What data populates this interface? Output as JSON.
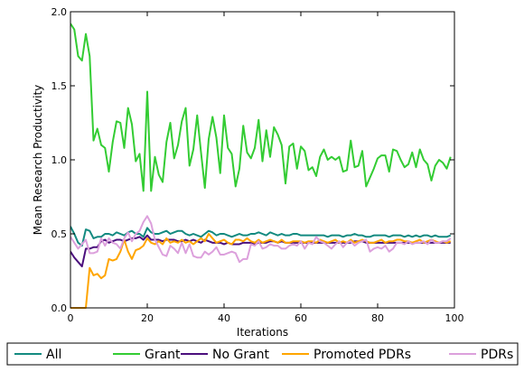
{
  "chart_data": {
    "type": "line",
    "xlabel": "Iterations",
    "ylabel": "Mean Research Productivity",
    "xlim": [
      0,
      100
    ],
    "ylim": [
      0.0,
      2.0
    ],
    "xticks": [
      0,
      20,
      40,
      60,
      80,
      100
    ],
    "yticks": [
      0.0,
      0.5,
      1.0,
      1.5,
      2.0
    ],
    "x_tick_labels": [
      "0",
      "20",
      "40",
      "60",
      "80",
      "100"
    ],
    "y_tick_labels": [
      "0.0",
      "0.5",
      "1.0",
      "1.5",
      "2.0"
    ],
    "grid": false,
    "legend_placement": "bottom",
    "series": [
      {
        "name": "All",
        "color": "#138a80",
        "x": [
          0,
          1,
          2,
          3,
          4,
          5,
          6,
          7,
          8,
          9,
          10,
          11,
          12,
          13,
          14,
          15,
          16,
          17,
          18,
          19,
          20,
          21,
          22,
          23,
          24,
          25,
          26,
          27,
          28,
          29,
          30,
          31,
          32,
          33,
          34,
          35,
          36,
          37,
          38,
          39,
          40,
          41,
          42,
          43,
          44,
          45,
          46,
          47,
          48,
          49,
          50,
          51,
          52,
          53,
          54,
          55,
          56,
          57,
          58,
          59,
          60,
          61,
          62,
          63,
          64,
          65,
          66,
          67,
          68,
          69,
          70,
          71,
          72,
          73,
          74,
          75,
          76,
          77,
          78,
          79,
          80,
          81,
          82,
          83,
          84,
          85,
          86,
          87,
          88,
          89,
          90,
          91,
          92,
          93,
          94,
          95,
          96,
          97,
          98,
          99
        ],
        "values": [
          0.55,
          0.5,
          0.44,
          0.42,
          0.53,
          0.52,
          0.47,
          0.48,
          0.48,
          0.5,
          0.5,
          0.49,
          0.51,
          0.5,
          0.49,
          0.51,
          0.52,
          0.5,
          0.5,
          0.48,
          0.54,
          0.51,
          0.5,
          0.5,
          0.51,
          0.52,
          0.5,
          0.51,
          0.52,
          0.52,
          0.5,
          0.49,
          0.5,
          0.49,
          0.48,
          0.5,
          0.52,
          0.51,
          0.49,
          0.5,
          0.5,
          0.49,
          0.48,
          0.49,
          0.5,
          0.49,
          0.49,
          0.5,
          0.5,
          0.51,
          0.5,
          0.49,
          0.51,
          0.5,
          0.49,
          0.5,
          0.49,
          0.49,
          0.5,
          0.5,
          0.49,
          0.49,
          0.49,
          0.49,
          0.49,
          0.49,
          0.49,
          0.48,
          0.49,
          0.49,
          0.49,
          0.48,
          0.49,
          0.49,
          0.5,
          0.49,
          0.49,
          0.48,
          0.48,
          0.49,
          0.49,
          0.49,
          0.49,
          0.48,
          0.49,
          0.49,
          0.49,
          0.48,
          0.49,
          0.48,
          0.49,
          0.48,
          0.49,
          0.49,
          0.48,
          0.49,
          0.48,
          0.48,
          0.48,
          0.49
        ]
      },
      {
        "name": "Grant",
        "color": "#33cc33",
        "x": [
          0,
          1,
          2,
          3,
          4,
          5,
          6,
          7,
          8,
          9,
          10,
          11,
          12,
          13,
          14,
          15,
          16,
          17,
          18,
          19,
          20,
          21,
          22,
          23,
          24,
          25,
          26,
          27,
          28,
          29,
          30,
          31,
          32,
          33,
          34,
          35,
          36,
          37,
          38,
          39,
          40,
          41,
          42,
          43,
          44,
          45,
          46,
          47,
          48,
          49,
          50,
          51,
          52,
          53,
          54,
          55,
          56,
          57,
          58,
          59,
          60,
          61,
          62,
          63,
          64,
          65,
          66,
          67,
          68,
          69,
          70,
          71,
          72,
          73,
          74,
          75,
          76,
          77,
          78,
          79,
          80,
          81,
          82,
          83,
          84,
          85,
          86,
          87,
          88,
          89,
          90,
          91,
          92,
          93,
          94,
          95,
          96,
          97,
          98,
          99
        ],
        "values": [
          1.92,
          1.88,
          1.7,
          1.67,
          1.85,
          1.7,
          1.13,
          1.21,
          1.1,
          1.08,
          0.92,
          1.12,
          1.26,
          1.25,
          1.08,
          1.35,
          1.24,
          0.99,
          1.04,
          0.79,
          1.46,
          0.79,
          1.02,
          0.9,
          0.85,
          1.12,
          1.25,
          1.01,
          1.1,
          1.26,
          1.35,
          0.96,
          1.07,
          1.3,
          1.05,
          0.81,
          1.14,
          1.29,
          1.15,
          0.91,
          1.3,
          1.08,
          1.04,
          0.82,
          0.94,
          1.23,
          1.05,
          1.01,
          1.08,
          1.27,
          0.99,
          1.2,
          1.02,
          1.22,
          1.17,
          1.1,
          0.84,
          1.09,
          1.11,
          0.94,
          1.09,
          1.06,
          0.93,
          0.95,
          0.89,
          1.02,
          1.07,
          1.0,
          1.02,
          1.0,
          1.02,
          0.92,
          0.93,
          1.13,
          0.95,
          0.96,
          1.06,
          0.82,
          0.88,
          0.94,
          1.01,
          1.03,
          1.03,
          0.92,
          1.07,
          1.06,
          1.0,
          0.95,
          0.97,
          1.05,
          0.95,
          1.07,
          1.0,
          0.97,
          0.86,
          0.96,
          1.0,
          0.98,
          0.94,
          1.02
        ]
      },
      {
        "name": "No Grant",
        "color": "#4b0f7d",
        "x": [
          0,
          1,
          2,
          3,
          4,
          5,
          6,
          7,
          8,
          9,
          10,
          11,
          12,
          13,
          14,
          15,
          16,
          17,
          18,
          19,
          20,
          21,
          22,
          23,
          24,
          25,
          26,
          27,
          28,
          29,
          30,
          31,
          32,
          33,
          34,
          35,
          36,
          37,
          38,
          39,
          40,
          41,
          42,
          43,
          44,
          45,
          46,
          47,
          48,
          49,
          50,
          51,
          52,
          53,
          54,
          55,
          56,
          57,
          58,
          59,
          60,
          61,
          62,
          63,
          64,
          65,
          66,
          67,
          68,
          69,
          70,
          71,
          72,
          73,
          74,
          75,
          76,
          77,
          78,
          79,
          80,
          81,
          82,
          83,
          84,
          85,
          86,
          87,
          88,
          89,
          90,
          91,
          92,
          93,
          94,
          95,
          96,
          97,
          98,
          99
        ],
        "values": [
          0.38,
          0.34,
          0.31,
          0.28,
          0.4,
          0.4,
          0.41,
          0.41,
          0.45,
          0.46,
          0.44,
          0.45,
          0.46,
          0.46,
          0.45,
          0.46,
          0.47,
          0.47,
          0.48,
          0.46,
          0.49,
          0.46,
          0.46,
          0.46,
          0.45,
          0.46,
          0.46,
          0.46,
          0.45,
          0.45,
          0.46,
          0.45,
          0.46,
          0.45,
          0.44,
          0.46,
          0.45,
          0.44,
          0.44,
          0.44,
          0.43,
          0.44,
          0.43,
          0.43,
          0.43,
          0.44,
          0.44,
          0.44,
          0.43,
          0.44,
          0.44,
          0.44,
          0.45,
          0.45,
          0.44,
          0.45,
          0.44,
          0.44,
          0.44,
          0.44,
          0.44,
          0.44,
          0.44,
          0.44,
          0.44,
          0.44,
          0.44,
          0.44,
          0.44,
          0.44,
          0.44,
          0.44,
          0.44,
          0.44,
          0.45,
          0.45,
          0.45,
          0.44,
          0.44,
          0.44,
          0.44,
          0.44,
          0.44,
          0.44,
          0.44,
          0.44,
          0.44,
          0.44,
          0.44,
          0.44,
          0.44,
          0.44,
          0.44,
          0.44,
          0.44,
          0.44,
          0.44,
          0.44,
          0.44,
          0.44
        ]
      },
      {
        "name": "Promoted PDRs",
        "color": "#ffa500",
        "x": [
          0,
          1,
          2,
          3,
          4,
          5,
          6,
          7,
          8,
          9,
          10,
          11,
          12,
          13,
          14,
          15,
          16,
          17,
          18,
          19,
          20,
          21,
          22,
          23,
          24,
          25,
          26,
          27,
          28,
          29,
          30,
          31,
          32,
          33,
          34,
          35,
          36,
          37,
          38,
          39,
          40,
          41,
          42,
          43,
          44,
          45,
          46,
          47,
          48,
          49,
          50,
          51,
          52,
          53,
          54,
          55,
          56,
          57,
          58,
          59,
          60,
          61,
          62,
          63,
          64,
          65,
          66,
          67,
          68,
          69,
          70,
          71,
          72,
          73,
          74,
          75,
          76,
          77,
          78,
          79,
          80,
          81,
          82,
          83,
          84,
          85,
          86,
          87,
          88,
          89,
          90,
          91,
          92,
          93,
          94,
          95,
          96,
          97,
          98,
          99
        ],
        "values": [
          0.0,
          0.0,
          0.0,
          0.0,
          0.0,
          0.27,
          0.22,
          0.23,
          0.2,
          0.22,
          0.33,
          0.32,
          0.33,
          0.38,
          0.46,
          0.38,
          0.33,
          0.39,
          0.4,
          0.42,
          0.47,
          0.44,
          0.43,
          0.45,
          0.43,
          0.47,
          0.44,
          0.45,
          0.44,
          0.46,
          0.44,
          0.45,
          0.43,
          0.45,
          0.47,
          0.45,
          0.5,
          0.47,
          0.44,
          0.45,
          0.46,
          0.44,
          0.43,
          0.46,
          0.46,
          0.45,
          0.47,
          0.45,
          0.44,
          0.46,
          0.44,
          0.45,
          0.46,
          0.45,
          0.44,
          0.46,
          0.44,
          0.44,
          0.45,
          0.45,
          0.45,
          0.44,
          0.45,
          0.45,
          0.44,
          0.46,
          0.45,
          0.44,
          0.45,
          0.46,
          0.44,
          0.45,
          0.44,
          0.46,
          0.44,
          0.45,
          0.46,
          0.45,
          0.44,
          0.44,
          0.45,
          0.46,
          0.44,
          0.45,
          0.45,
          0.46,
          0.46,
          0.45,
          0.45,
          0.44,
          0.45,
          0.46,
          0.44,
          0.45,
          0.46,
          0.45,
          0.44,
          0.45,
          0.44,
          0.45
        ]
      },
      {
        "name": "PDRs",
        "color": "#dca0dc",
        "x": [
          0,
          1,
          2,
          3,
          4,
          5,
          6,
          7,
          8,
          9,
          10,
          11,
          12,
          13,
          14,
          15,
          16,
          17,
          18,
          19,
          20,
          21,
          22,
          23,
          24,
          25,
          26,
          27,
          28,
          29,
          30,
          31,
          32,
          33,
          34,
          35,
          36,
          37,
          38,
          39,
          40,
          41,
          42,
          43,
          44,
          45,
          46,
          47,
          48,
          49,
          50,
          51,
          52,
          53,
          54,
          55,
          56,
          57,
          58,
          59,
          60,
          61,
          62,
          63,
          64,
          65,
          66,
          67,
          68,
          69,
          70,
          71,
          72,
          73,
          74,
          75,
          76,
          77,
          78,
          79,
          80,
          81,
          82,
          83,
          84,
          85,
          86,
          87,
          88,
          89,
          90,
          91,
          92,
          93,
          94,
          95,
          96,
          97,
          98,
          99
        ],
        "values": [
          0.48,
          0.44,
          0.4,
          0.43,
          0.46,
          0.37,
          0.37,
          0.38,
          0.47,
          0.42,
          0.47,
          0.44,
          0.43,
          0.4,
          0.47,
          0.51,
          0.45,
          0.5,
          0.52,
          0.58,
          0.62,
          0.57,
          0.46,
          0.41,
          0.36,
          0.35,
          0.42,
          0.4,
          0.37,
          0.44,
          0.37,
          0.43,
          0.35,
          0.34,
          0.34,
          0.38,
          0.36,
          0.38,
          0.41,
          0.36,
          0.36,
          0.37,
          0.38,
          0.37,
          0.31,
          0.33,
          0.33,
          0.43,
          0.42,
          0.45,
          0.4,
          0.41,
          0.43,
          0.42,
          0.42,
          0.4,
          0.4,
          0.42,
          0.43,
          0.42,
          0.45,
          0.4,
          0.44,
          0.43,
          0.48,
          0.45,
          0.44,
          0.42,
          0.4,
          0.43,
          0.45,
          0.41,
          0.44,
          0.45,
          0.42,
          0.44,
          0.45,
          0.46,
          0.38,
          0.4,
          0.41,
          0.4,
          0.42,
          0.38,
          0.4,
          0.44,
          0.44,
          0.43,
          0.45,
          0.43,
          0.44,
          0.44,
          0.45,
          0.43,
          0.46,
          0.44,
          0.44,
          0.45,
          0.45,
          0.47
        ]
      }
    ]
  }
}
